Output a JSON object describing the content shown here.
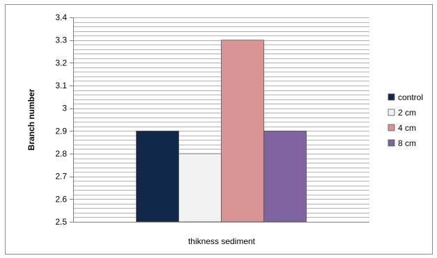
{
  "chart_data": {
    "type": "bar",
    "categories": [
      ""
    ],
    "series": [
      {
        "name": "control",
        "values": [
          2.9
        ],
        "color": "#12284a"
      },
      {
        "name": "2 cm",
        "values": [
          2.8
        ],
        "color": "#f2f2f2"
      },
      {
        "name": "4 cm",
        "values": [
          3.3
        ],
        "color": "#d99594"
      },
      {
        "name": "8 cm",
        "values": [
          2.9
        ],
        "color": "#8064a2"
      }
    ],
    "title": "",
    "xlabel": "thikness sediment",
    "ylabel": "Branch number",
    "ylim": [
      2.5,
      3.4
    ],
    "yticks": [
      "2.5",
      "2.6",
      "2.7",
      "2.8",
      "2.9",
      "3",
      "3.1",
      "3.2",
      "3.3",
      "3.4"
    ],
    "minor_grid_step": 0.02,
    "grid": true,
    "legend": "right"
  }
}
